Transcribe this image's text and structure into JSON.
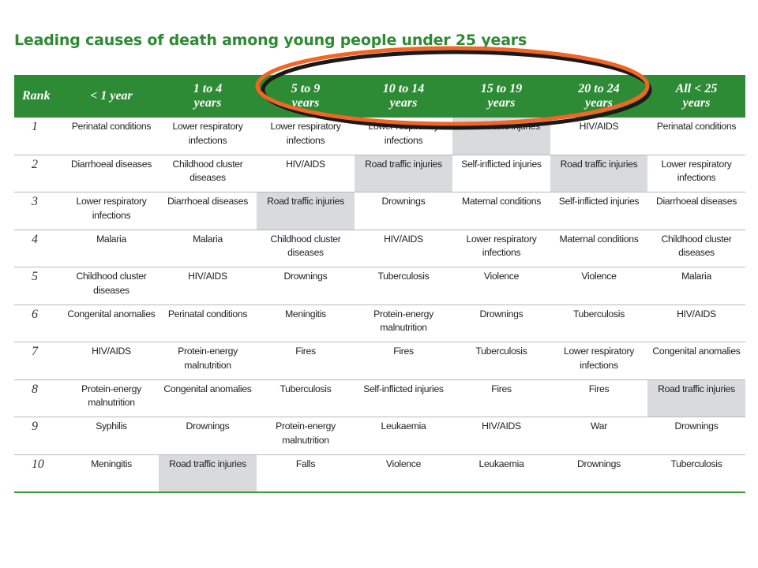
{
  "title": "Leading causes of death among young people under 25 years",
  "columns": [
    {
      "l1": "Rank",
      "l2": ""
    },
    {
      "l1": "< 1 year",
      "l2": ""
    },
    {
      "l1": "1 to 4",
      "l2": "years"
    },
    {
      "l1": "5 to 9",
      "l2": "years"
    },
    {
      "l1": "10 to 14",
      "l2": "years"
    },
    {
      "l1": "15 to 19",
      "l2": "years"
    },
    {
      "l1": "20 to 24",
      "l2": "years"
    },
    {
      "l1": "All < 25",
      "l2": "years"
    }
  ],
  "rows": [
    {
      "rank": "1",
      "cells": [
        "Perinatal conditions",
        "Lower respiratory infections",
        "Lower respiratory infections",
        "Lower respiratory infections",
        "Road traffic injuries",
        "HIV/AIDS",
        "Perinatal conditions"
      ]
    },
    {
      "rank": "2",
      "cells": [
        "Diarrhoeal diseases",
        "Childhood cluster diseases",
        "HIV/AIDS",
        "Road traffic injuries",
        "Self-inflicted injuries",
        "Road traffic injuries",
        "Lower respiratory infections"
      ]
    },
    {
      "rank": "3",
      "cells": [
        "Lower respiratory infections",
        "Diarrhoeal diseases",
        "Road traffic injuries",
        "Drownings",
        "Maternal conditions",
        "Self-inflicted injuries",
        "Diarrhoeal diseases"
      ]
    },
    {
      "rank": "4",
      "cells": [
        "Malaria",
        "Malaria",
        "Childhood cluster diseases",
        "HIV/AIDS",
        "Lower respiratory infections",
        "Maternal conditions",
        "Childhood cluster diseases"
      ]
    },
    {
      "rank": "5",
      "cells": [
        "Childhood cluster diseases",
        "HIV/AIDS",
        "Drownings",
        "Tuberculosis",
        "Violence",
        "Violence",
        "Malaria"
      ]
    },
    {
      "rank": "6",
      "cells": [
        "Congenital anomalies",
        "Perinatal conditions",
        "Meningitis",
        "Protein-energy malnutrition",
        "Drownings",
        "Tuberculosis",
        "HIV/AIDS"
      ]
    },
    {
      "rank": "7",
      "cells": [
        "HIV/AIDS",
        "Protein-energy malnutrition",
        "Fires",
        "Fires",
        "Tuberculosis",
        "Lower respiratory infections",
        "Congenital anomalies"
      ]
    },
    {
      "rank": "8",
      "cells": [
        "Protein-energy malnutrition",
        "Congenital anomalies",
        "Tuberculosis",
        "Self-inflicted injuries",
        "Fires",
        "Fires",
        "Road traffic injuries"
      ]
    },
    {
      "rank": "9",
      "cells": [
        "Syphilis",
        "Drownings",
        "Protein-energy malnutrition",
        "Leukaemia",
        "HIV/AIDS",
        "War",
        "Drownings"
      ]
    },
    {
      "rank": "10",
      "cells": [
        "Meningitis",
        "Road traffic injuries",
        "Falls",
        "Violence",
        "Leukaemia",
        "Drownings",
        "Tuberculosis"
      ]
    }
  ],
  "highlight_label": "Road traffic injuries",
  "colors": {
    "header_green": "#2e8b35",
    "title_green": "#2f8a34",
    "highlight_grey": "#d9dadc",
    "ellipse_orange": "#f26522",
    "ellipse_shadow": "#1a1a1a"
  }
}
